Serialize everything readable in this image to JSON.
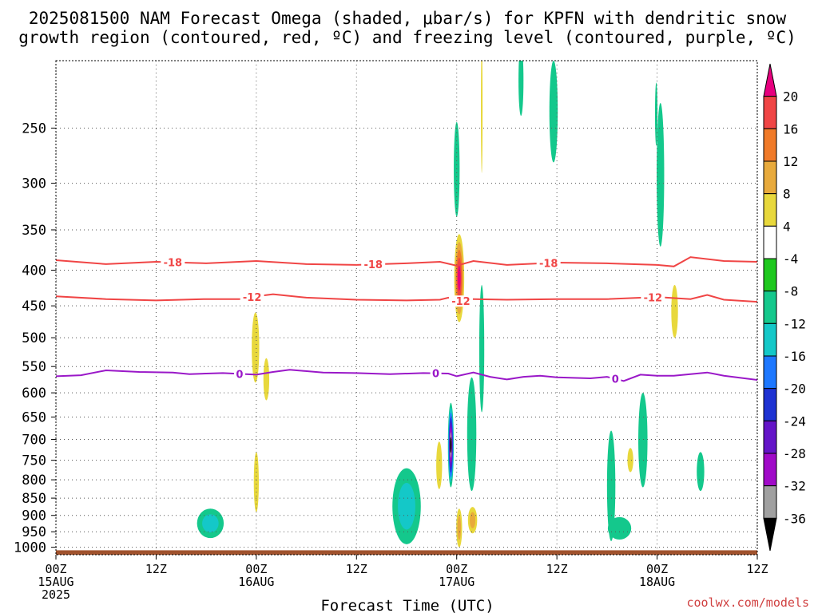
{
  "chart_data": {
    "type": "heatmap",
    "title_lines": [
      "2025081500 NAM Forecast Omega (shaded, μbar/s) for KPFN with dendritic snow",
      "growth region (contoured, red, ºC) and freezing level (contoured, purple, ºC)"
    ],
    "xlabel": "Forecast Time (UTC)",
    "watermark": "coolwx.com/models",
    "x_ticks": [
      {
        "hour": 0,
        "lines": [
          "00Z",
          "15AUG",
          "2025"
        ]
      },
      {
        "hour": 12,
        "lines": [
          "12Z"
        ]
      },
      {
        "hour": 24,
        "lines": [
          "00Z",
          "16AUG"
        ]
      },
      {
        "hour": 36,
        "lines": [
          "12Z"
        ]
      },
      {
        "hour": 48,
        "lines": [
          "00Z",
          "17AUG"
        ]
      },
      {
        "hour": 60,
        "lines": [
          "12Z"
        ]
      },
      {
        "hour": 72,
        "lines": [
          "00Z",
          "18AUG"
        ]
      },
      {
        "hour": 84,
        "lines": [
          "12Z"
        ]
      }
    ],
    "xlim": [
      0,
      84
    ],
    "y_ticks": [
      250,
      300,
      350,
      400,
      450,
      500,
      550,
      600,
      650,
      700,
      750,
      800,
      850,
      900,
      950,
      1000
    ],
    "ylim_hpa": [
      1025,
      200
    ],
    "y_scale": "log",
    "grid": true,
    "colorbar": {
      "labels": [
        "20",
        "16",
        "12",
        "8",
        "4",
        "-4",
        "-8",
        "-12",
        "-16",
        "-20",
        "-24",
        "-28",
        "-32",
        "-36"
      ],
      "colors": [
        "#e6007e",
        "#f04545",
        "#f07a28",
        "#e8aa3c",
        "#e8d83c",
        "#ffffff",
        "#1ec81e",
        "#14c88c",
        "#14c8c8",
        "#1e78ff",
        "#1e32d2",
        "#6414c8",
        "#a00ac8",
        "#a0a0a0",
        "#000000"
      ]
    },
    "contours": [
      {
        "label": "-18",
        "color": "#f04545",
        "points": [
          [
            0,
            387
          ],
          [
            6,
            392
          ],
          [
            12,
            389
          ],
          [
            18,
            391
          ],
          [
            24,
            388
          ],
          [
            30,
            392
          ],
          [
            36,
            393
          ],
          [
            42,
            391
          ],
          [
            46,
            389
          ],
          [
            48,
            394
          ],
          [
            50,
            388
          ],
          [
            54,
            393
          ],
          [
            60,
            390
          ],
          [
            66,
            391
          ],
          [
            72,
            393
          ],
          [
            74,
            395
          ],
          [
            76,
            383
          ],
          [
            80,
            388
          ],
          [
            84,
            389
          ]
        ],
        "labels_at": [
          14,
          38,
          59
        ]
      },
      {
        "label": "-12",
        "color": "#f04545",
        "points": [
          [
            0,
            436
          ],
          [
            6,
            440
          ],
          [
            12,
            442
          ],
          [
            18,
            440
          ],
          [
            22,
            440
          ],
          [
            24,
            436
          ],
          [
            26,
            433
          ],
          [
            30,
            438
          ],
          [
            36,
            441
          ],
          [
            42,
            442
          ],
          [
            46,
            441
          ],
          [
            47,
            438
          ],
          [
            48,
            444
          ],
          [
            50,
            440
          ],
          [
            54,
            441
          ],
          [
            60,
            440
          ],
          [
            66,
            440
          ],
          [
            72,
            437
          ],
          [
            76,
            440
          ],
          [
            78,
            434
          ],
          [
            80,
            441
          ],
          [
            84,
            444
          ]
        ],
        "labels_at": [
          23.5,
          48.5,
          71.5
        ]
      },
      {
        "label": "0",
        "color": "#9a18c8",
        "points": [
          [
            0,
            568
          ],
          [
            3,
            566
          ],
          [
            6,
            557
          ],
          [
            10,
            560
          ],
          [
            14,
            561
          ],
          [
            16,
            564
          ],
          [
            20,
            562
          ],
          [
            24,
            565
          ],
          [
            26,
            560
          ],
          [
            28,
            556
          ],
          [
            32,
            561
          ],
          [
            36,
            562
          ],
          [
            40,
            564
          ],
          [
            44,
            562
          ],
          [
            47,
            563
          ],
          [
            48,
            568
          ],
          [
            50,
            561
          ],
          [
            52,
            569
          ],
          [
            54,
            574
          ],
          [
            56,
            569
          ],
          [
            58,
            567
          ],
          [
            60,
            570
          ],
          [
            64,
            572
          ],
          [
            66,
            569
          ],
          [
            68,
            577
          ],
          [
            70,
            565
          ],
          [
            72,
            567
          ],
          [
            74,
            567
          ],
          [
            76,
            564
          ],
          [
            78,
            561
          ],
          [
            80,
            567
          ],
          [
            84,
            575
          ]
        ],
        "labels_at": [
          22,
          45.5,
          67
        ]
      }
    ],
    "omega_features": [
      {
        "value": -12,
        "hour": 18.5,
        "p_center": 925,
        "p_half": 45,
        "t_half": 1.6
      },
      {
        "value": -12,
        "hour": 42.0,
        "p_center": 880,
        "p_half": 110,
        "t_half": 1.7
      },
      {
        "value": -36,
        "hour": 47.3,
        "p_center": 720,
        "p_half": 100,
        "t_half": 0.35
      },
      {
        "value": 20,
        "hour": 48.3,
        "p_center": 415,
        "p_half": 60,
        "t_half": 0.6
      },
      {
        "value": -8,
        "hour": 48.0,
        "p_center": 290,
        "p_half": 45,
        "t_half": 0.35
      },
      {
        "value": -8,
        "hour": 49.8,
        "p_center": 700,
        "p_half": 130,
        "t_half": 0.55
      },
      {
        "value": 8,
        "hour": 48.3,
        "p_center": 940,
        "p_half": 60,
        "t_half": 0.35
      },
      {
        "value": 8,
        "hour": 49.9,
        "p_center": 915,
        "p_half": 40,
        "t_half": 0.55
      },
      {
        "value": -8,
        "hour": 51.0,
        "p_center": 530,
        "p_half": 110,
        "t_half": 0.3
      },
      {
        "value": 4,
        "hour": 23.9,
        "p_center": 520,
        "p_half": 60,
        "t_half": 0.45
      },
      {
        "value": 4,
        "hour": 24.0,
        "p_center": 810,
        "p_half": 80,
        "t_half": 0.3
      },
      {
        "value": 4,
        "hour": 25.2,
        "p_center": 575,
        "p_half": 40,
        "t_half": 0.35
      },
      {
        "value": 4,
        "hour": 45.9,
        "p_center": 765,
        "p_half": 60,
        "t_half": 0.35
      },
      {
        "value": -8,
        "hour": 59.6,
        "p_center": 240,
        "p_half": 40,
        "t_half": 0.5
      },
      {
        "value": -8,
        "hour": 72.4,
        "p_center": 300,
        "p_half": 70,
        "t_half": 0.45
      },
      {
        "value": -8,
        "hour": 70.3,
        "p_center": 710,
        "p_half": 110,
        "t_half": 0.55
      },
      {
        "value": -8,
        "hour": 66.5,
        "p_center": 830,
        "p_half": 150,
        "t_half": 0.5
      },
      {
        "value": -8,
        "hour": 67.5,
        "p_center": 940,
        "p_half": 35,
        "t_half": 1.4
      },
      {
        "value": -8,
        "hour": 77.2,
        "p_center": 780,
        "p_half": 50,
        "t_half": 0.45
      },
      {
        "value": 4,
        "hour": 68.8,
        "p_center": 750,
        "p_half": 30,
        "t_half": 0.35
      },
      {
        "value": 4,
        "hour": 74.1,
        "p_center": 460,
        "p_half": 40,
        "t_half": 0.4
      },
      {
        "value": -8,
        "hour": 55.7,
        "p_center": 215,
        "p_half": 25,
        "t_half": 0.3
      },
      {
        "value": 4,
        "hour": 51.0,
        "p_center": 240,
        "p_half": 50,
        "t_half": 0.1
      },
      {
        "value": -8,
        "hour": 71.9,
        "p_center": 240,
        "p_half": 25,
        "t_half": 0.15
      }
    ],
    "ground": {
      "below_hpa": 1010,
      "color": "#a0522d"
    }
  }
}
